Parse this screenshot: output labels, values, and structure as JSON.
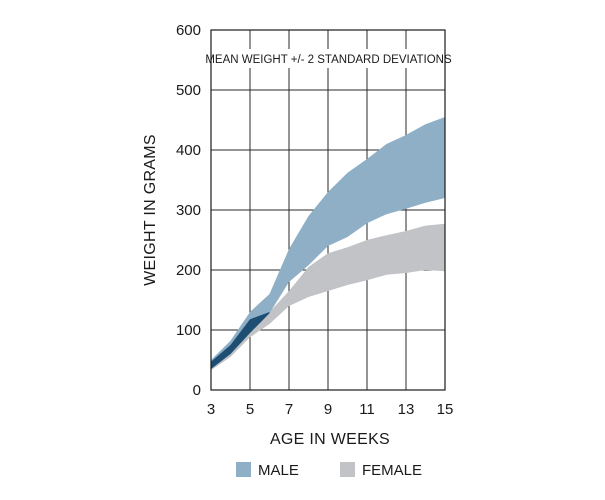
{
  "chart_data": {
    "type": "area",
    "annotation": "MEAN WEIGHT +/- 2 STANDARD DEVIATIONS",
    "xlabel": "AGE IN WEEKS",
    "ylabel": "WEIGHT IN GRAMS",
    "xlim": [
      3,
      15
    ],
    "ylim": [
      0,
      600
    ],
    "x_ticks": [
      "3",
      "5",
      "7",
      "9",
      "11",
      "13",
      "15"
    ],
    "y_ticks": [
      "0",
      "100",
      "200",
      "300",
      "400",
      "500",
      "600"
    ],
    "x_ticks_values": [
      3,
      5,
      7,
      9,
      11,
      13,
      15
    ],
    "y_ticks_values": [
      0,
      100,
      200,
      300,
      400,
      500,
      600
    ],
    "grid": true,
    "legend_position": "bottom",
    "colors": {
      "male": "#8eafc6",
      "female": "#c2c3c6",
      "overlap": "#1f4e73"
    },
    "series": [
      {
        "name": "MALE",
        "x": [
          3,
          4,
          5,
          6,
          7,
          8,
          9,
          10,
          11,
          12,
          13,
          14,
          15
        ],
        "upper": [
          50,
          82,
          130,
          160,
          235,
          290,
          330,
          362,
          385,
          410,
          425,
          443,
          455
        ],
        "lower": [
          35,
          60,
          95,
          128,
          180,
          208,
          240,
          255,
          278,
          293,
          302,
          312,
          320
        ]
      },
      {
        "name": "FEMALE",
        "x": [
          3,
          4,
          5,
          6,
          7,
          8,
          9,
          10,
          11,
          12,
          13,
          14,
          15
        ],
        "upper": [
          47,
          75,
          118,
          130,
          165,
          205,
          228,
          238,
          250,
          258,
          265,
          274,
          277
        ],
        "lower": [
          33,
          55,
          88,
          110,
          140,
          155,
          165,
          175,
          183,
          192,
          195,
          200,
          198
        ]
      }
    ]
  }
}
